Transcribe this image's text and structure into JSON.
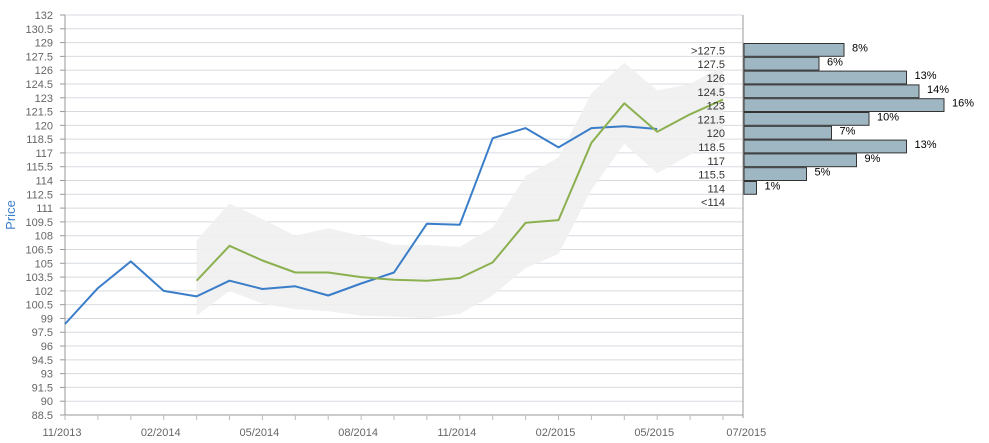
{
  "chart_data": {
    "type": "line",
    "ylabel": "Price",
    "ylim": [
      88.5,
      132
    ],
    "y_ticks": [
      "132",
      "130.5",
      "129",
      "127.5",
      "126",
      "124.5",
      "123",
      "121.5",
      "120",
      "118.5",
      "117",
      "115.5",
      "114",
      "112.5",
      "111",
      "109.5",
      "108",
      "106.5",
      "105",
      "103.5",
      "102",
      "100.5",
      "99",
      "97.5",
      "96",
      "94.5",
      "93",
      "91.5",
      "90",
      "88.5"
    ],
    "x_ticks": [
      "11/2013",
      "02/2014",
      "05/2014",
      "08/2014",
      "11/2014",
      "02/2015",
      "05/2015",
      "07/2015"
    ],
    "grid": true,
    "series": [
      {
        "color": "#3a7dc9",
        "x": [
          "2013-11",
          "2013-12",
          "2014-01",
          "2014-02",
          "2014-03",
          "2014-04",
          "2014-05",
          "2014-06",
          "2014-07",
          "2014-08",
          "2014-09",
          "2014-10",
          "2014-11",
          "2014-12",
          "2015-01",
          "2015-02",
          "2015-03",
          "2015-04",
          "2015-05"
        ],
        "values": [
          98.4,
          102.3,
          105.2,
          102.0,
          101.4,
          103.1,
          102.2,
          102.5,
          101.5,
          102.8,
          104.0,
          109.3,
          109.2,
          118.6,
          119.7,
          117.6,
          119.7,
          119.9,
          119.6
        ]
      },
      {
        "color": "#8bb050",
        "x": [
          "2014-03",
          "2014-04",
          "2014-05",
          "2014-06",
          "2014-07",
          "2014-08",
          "2014-09",
          "2014-10",
          "2014-11",
          "2014-12",
          "2015-01",
          "2015-02",
          "2015-03",
          "2015-04",
          "2015-05",
          "2015-06",
          "2015-07"
        ],
        "values": [
          103.1,
          106.9,
          105.3,
          104.0,
          104.0,
          103.5,
          103.2,
          103.1,
          103.4,
          105.1,
          109.4,
          109.7,
          118.1,
          122.4,
          119.3,
          121.2,
          122.8
        ]
      }
    ],
    "band": {
      "color": "#f0f0f0",
      "x": [
        "2014-03",
        "2014-04",
        "2014-05",
        "2014-06",
        "2014-07",
        "2014-08",
        "2014-09",
        "2014-10",
        "2014-11",
        "2014-12",
        "2015-01",
        "2015-02",
        "2015-03",
        "2015-04",
        "2015-05",
        "2015-06",
        "2015-07"
      ],
      "upper": [
        107.5,
        111.5,
        109.8,
        108.0,
        108.8,
        108.0,
        107.0,
        107.0,
        106.8,
        108.9,
        114.5,
        116.5,
        123.5,
        126.8,
        123.8,
        124.5,
        126.5
      ],
      "lower": [
        99.3,
        102.0,
        100.6,
        100.0,
        99.8,
        99.3,
        99.2,
        99.0,
        99.5,
        101.5,
        104.5,
        106.0,
        113.0,
        118.0,
        114.8,
        116.8,
        118.5
      ]
    },
    "distribution": {
      "color": "#9fb6c3",
      "bins": [
        {
          "label": ">127.5",
          "percent": 8,
          "text": "8%"
        },
        {
          "label": "127.5",
          "percent": 6,
          "text": "6%"
        },
        {
          "label": "126",
          "percent": 13,
          "text": "13%"
        },
        {
          "label": "124.5",
          "percent": 14,
          "text": "14%"
        },
        {
          "label": "123",
          "percent": 16,
          "text": "16%"
        },
        {
          "label": "121.5",
          "percent": 10,
          "text": "10%"
        },
        {
          "label": "120",
          "percent": 7,
          "text": "7%"
        },
        {
          "label": "118.5",
          "percent": 13,
          "text": "13%"
        },
        {
          "label": "117",
          "percent": 9,
          "text": "9%"
        },
        {
          "label": "115.5",
          "percent": 5,
          "text": "5%"
        },
        {
          "label": "114",
          "percent": 1,
          "text": "1%"
        },
        {
          "label": "<114",
          "percent": 0,
          "text": ""
        }
      ]
    }
  }
}
